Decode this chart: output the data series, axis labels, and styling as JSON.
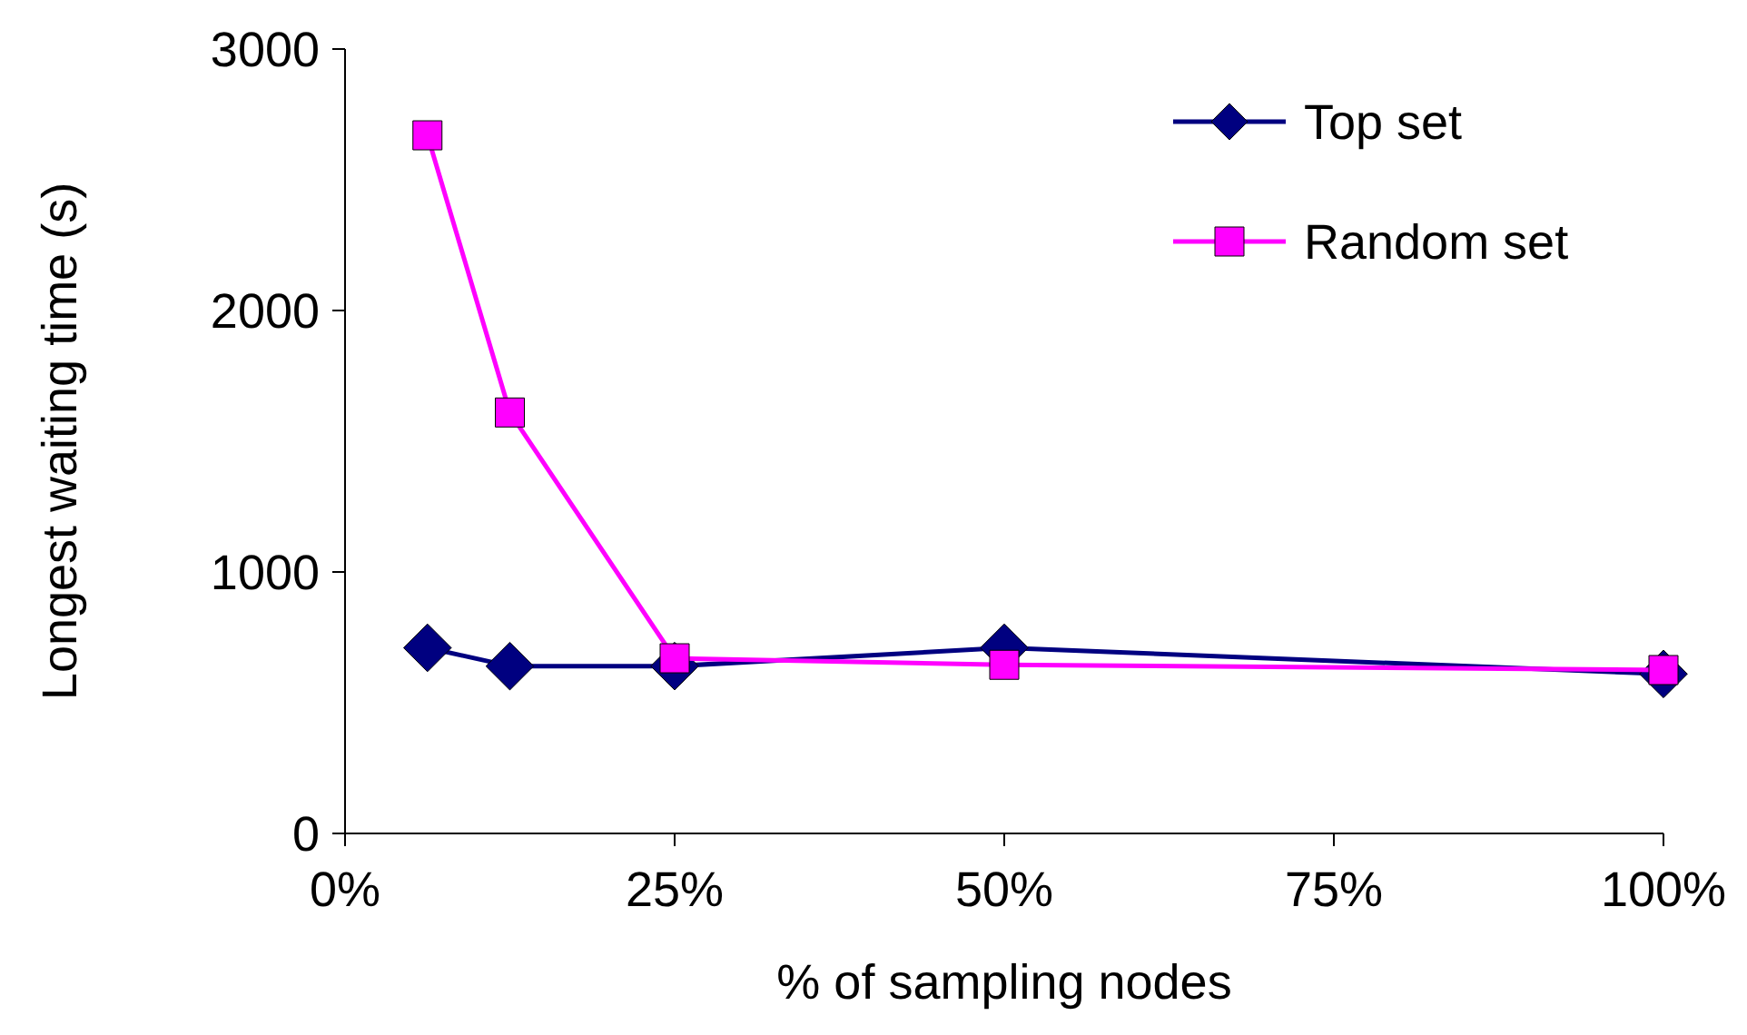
{
  "chart_data": {
    "type": "line",
    "xlabel": "% of sampling nodes",
    "ylabel": "Longest waiting time (s)",
    "x": [
      6.25,
      12.5,
      25,
      50,
      100
    ],
    "series": [
      {
        "name": "Top set",
        "color": "#000080",
        "values": [
          710,
          640,
          640,
          710,
          610
        ],
        "marker": "diamond"
      },
      {
        "name": "Random set",
        "color": "#ff00ff",
        "values": [
          2670,
          1610,
          670,
          645,
          625
        ],
        "marker": "square"
      }
    ],
    "xlim": [
      0,
      100
    ],
    "xticks": [
      {
        "value": 0,
        "label": "0%"
      },
      {
        "value": 25,
        "label": "25%"
      },
      {
        "value": 50,
        "label": "50%"
      },
      {
        "value": 75,
        "label": "75%"
      },
      {
        "value": 100,
        "label": "100%"
      }
    ],
    "ylim": [
      0,
      3000
    ],
    "yticks": [
      0,
      1000,
      2000,
      3000
    ],
    "grid": false,
    "legend": "top right",
    "line_style": "solid"
  }
}
